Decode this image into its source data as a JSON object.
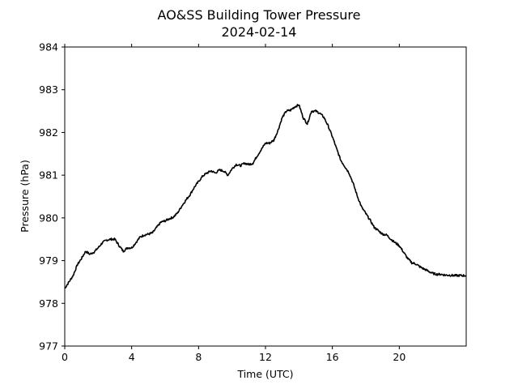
{
  "chart_data": {
    "type": "line",
    "title": "AO&SS Building Tower Pressure",
    "subtitle": "2024-02-14",
    "xlabel": "Time (UTC)",
    "ylabel": "Pressure (hPa)",
    "xlim": [
      0,
      24
    ],
    "ylim": [
      977,
      984
    ],
    "xticks": [
      0,
      4,
      8,
      12,
      16,
      20
    ],
    "yticks": [
      977,
      978,
      979,
      980,
      981,
      982,
      983,
      984
    ],
    "grid": false,
    "series": [
      {
        "color": "#000000",
        "x": [
          0,
          0.25,
          0.5,
          0.75,
          1.0,
          1.25,
          1.5,
          1.75,
          2.0,
          2.25,
          2.5,
          2.75,
          3.0,
          3.25,
          3.5,
          3.75,
          4.0,
          4.25,
          4.5,
          4.75,
          5.0,
          5.25,
          5.5,
          5.75,
          6.0,
          6.25,
          6.5,
          6.75,
          7.0,
          7.25,
          7.5,
          7.75,
          8.0,
          8.25,
          8.5,
          8.75,
          9.0,
          9.25,
          9.5,
          9.75,
          10.0,
          10.25,
          10.5,
          10.75,
          11.0,
          11.25,
          11.5,
          11.75,
          12.0,
          12.25,
          12.5,
          12.75,
          13.0,
          13.25,
          13.5,
          13.75,
          14.0,
          14.25,
          14.5,
          14.75,
          15.0,
          15.25,
          15.5,
          15.75,
          16.0,
          16.25,
          16.5,
          16.75,
          17.0,
          17.25,
          17.5,
          17.75,
          18.0,
          18.25,
          18.5,
          18.75,
          19.0,
          19.25,
          19.5,
          19.75,
          20.0,
          20.25,
          20.5,
          20.75,
          21.0,
          21.25,
          21.5,
          21.75,
          22.0,
          22.25,
          22.5,
          22.75,
          23.0,
          23.25,
          23.5,
          23.75,
          24.0
        ],
        "values": [
          978.35,
          978.5,
          978.65,
          978.9,
          979.05,
          979.22,
          979.15,
          979.2,
          979.3,
          979.42,
          979.48,
          979.5,
          979.5,
          979.35,
          979.22,
          979.3,
          979.3,
          979.42,
          979.55,
          979.6,
          979.62,
          979.65,
          979.78,
          979.9,
          979.93,
          979.98,
          980.02,
          980.12,
          980.28,
          980.42,
          980.55,
          980.72,
          980.85,
          980.98,
          981.05,
          981.1,
          981.05,
          981.12,
          981.1,
          981.0,
          981.15,
          981.25,
          981.22,
          981.28,
          981.25,
          981.28,
          981.45,
          981.6,
          981.75,
          981.75,
          981.82,
          982.05,
          982.35,
          982.5,
          982.52,
          982.6,
          982.65,
          982.35,
          982.2,
          982.5,
          982.5,
          982.45,
          982.35,
          982.15,
          981.9,
          981.62,
          981.35,
          981.2,
          981.05,
          980.8,
          980.5,
          980.25,
          980.1,
          979.95,
          979.78,
          979.7,
          979.62,
          979.6,
          979.5,
          979.42,
          979.35,
          979.2,
          979.05,
          978.95,
          978.92,
          978.85,
          978.8,
          978.75,
          978.7,
          978.68,
          978.68,
          978.66,
          978.66,
          978.65,
          978.65,
          978.65,
          978.65
        ]
      }
    ]
  }
}
